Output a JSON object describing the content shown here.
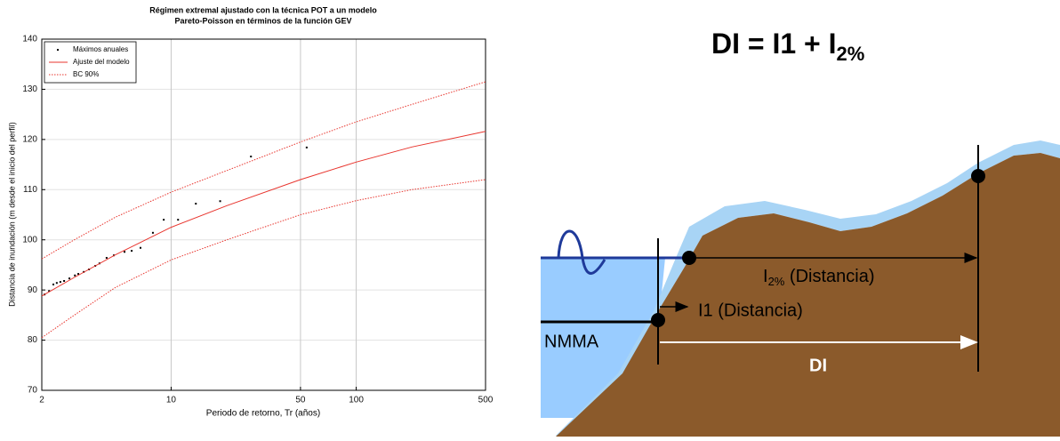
{
  "chart_data": {
    "type": "line",
    "title": [
      "Régimen extremal ajustado con la técnica POT a un modelo",
      "Pareto-Poisson en términos de la función GEV"
    ],
    "xlabel": "Periodo de retorno, Tr (años)",
    "ylabel": "Distancia de inundación (m desde el inicio del perfil)",
    "xscale": "log",
    "xlim": [
      2,
      500
    ],
    "xticks": [
      2,
      10,
      50,
      100,
      500
    ],
    "ylim": [
      70,
      140
    ],
    "yticks": [
      70,
      80,
      90,
      100,
      110,
      120,
      130,
      140
    ],
    "grid": true,
    "legend": "upper left",
    "series": [
      {
        "name": "Máximos anuales",
        "kind": "scatter",
        "color": "#000000",
        "x": [
          2.07,
          2.19,
          2.31,
          2.41,
          2.52,
          2.64,
          2.82,
          3.02,
          3.15,
          3.37,
          3.6,
          3.89,
          4.1,
          4.48,
          4.9,
          5.6,
          6.12,
          6.83,
          7.97,
          9.12,
          10.9,
          13.6,
          18.4,
          27,
          54
        ],
        "values": [
          89.1,
          89.8,
          91.1,
          91.4,
          91.6,
          91.8,
          92.3,
          92.9,
          93.2,
          93.6,
          94.1,
          94.8,
          95.3,
          96.4,
          96.9,
          97.6,
          97.8,
          98.4,
          101.4,
          104,
          104,
          107.2,
          107.7,
          116.6,
          118.4
        ]
      },
      {
        "name": "Ajuste del modelo",
        "kind": "solid",
        "color": "#e8352e",
        "x": [
          2,
          3,
          5,
          10,
          20,
          50,
          100,
          200,
          500
        ],
        "values": [
          88.8,
          92.5,
          97,
          102.5,
          106.8,
          112,
          115.5,
          118.5,
          121.6
        ]
      },
      {
        "name": "BC 90%",
        "kind": "dotted",
        "color": "#e8352e",
        "x": [
          2,
          3,
          5,
          10,
          20,
          50,
          100,
          200,
          500
        ],
        "values": [
          96.2,
          100,
          104.5,
          109.5,
          113.8,
          119.5,
          123.5,
          127,
          131.5
        ],
        "lower_values": [
          80.5,
          85,
          90.5,
          96,
          100,
          105,
          107.8,
          110,
          112
        ]
      }
    ]
  },
  "diagram": {
    "formula": {
      "main": "DI = I1 + I",
      "sub": "2%"
    },
    "i2_label": {
      "main": "I",
      "sub": "2%",
      "rest": " (Distancia)"
    },
    "i1_label": "I1 (Distancia)",
    "nmma_label": "NMMA",
    "di_label": "DI"
  }
}
